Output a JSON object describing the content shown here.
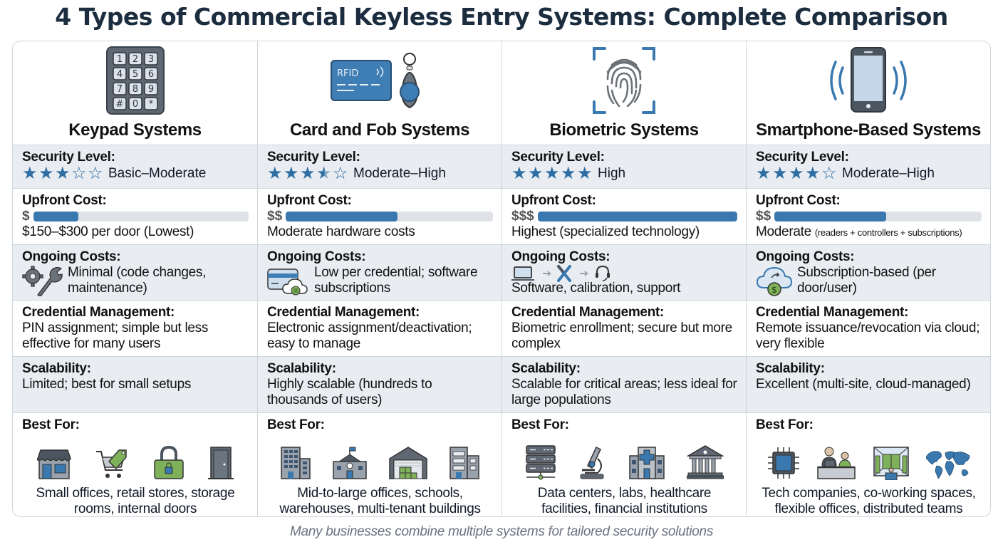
{
  "title": "4 Types of Commercial Keyless Entry Systems: Complete Comparison",
  "footer": "Many businesses combine multiple systems for tailored security solutions",
  "colors": {
    "accent": "#3a78b0",
    "title": "#1b2d3f",
    "shaded_row": "#e9edf2",
    "border": "#cfd5dc"
  },
  "row_labels": {
    "security": "Security Level:",
    "upfront": "Upfront Cost:",
    "ongoing": "Ongoing Costs:",
    "credential": "Credential Management:",
    "scalability": "Scalability:",
    "best_for": "Best For:"
  },
  "systems": [
    {
      "name": "Keypad Systems",
      "icon": "keypad-icon",
      "security": {
        "stars": 3,
        "label": "Basic–Moderate"
      },
      "upfront": {
        "dollars": "$",
        "bar_pct": 21,
        "text": "$150–$300 per door (Lowest)",
        "note": ""
      },
      "ongoing": {
        "icon": "gear-wrench-icon",
        "text": "Minimal (code changes, maintenance)"
      },
      "credential": "PIN assignment; simple but less effective for many users",
      "scalability": "Limited; best for small setups",
      "best_for": {
        "icons": [
          "storefront-icon",
          "shopping-cart-tag-icon",
          "padlock-icon",
          "door-icon"
        ],
        "text": "Small offices, retail stores, storage rooms, internal doors"
      }
    },
    {
      "name": "Card and Fob Systems",
      "icon": "rfid-card-fob-icon",
      "security": {
        "stars": 3.5,
        "label": "Moderate–High"
      },
      "upfront": {
        "dollars": "$$",
        "bar_pct": 54,
        "text": "Moderate hardware costs",
        "note": ""
      },
      "ongoing": {
        "icon": "card-cloud-icon",
        "text": "Low per credential; software subscriptions"
      },
      "credential": "Electronic assignment/deactivation; easy to manage",
      "scalability": "Highly scalable (hundreds to thousands of users)",
      "best_for": {
        "icons": [
          "office-building-icon",
          "school-icon",
          "warehouse-icon",
          "multi-tenant-building-icon"
        ],
        "text": "Mid-to-large offices, schools, warehouses, multi-tenant buildings"
      }
    },
    {
      "name": "Biometric Systems",
      "icon": "fingerprint-icon",
      "security": {
        "stars": 5,
        "label": "High"
      },
      "upfront": {
        "dollars": "$$$",
        "bar_pct": 100,
        "text": "Highest (specialized technology)",
        "note": ""
      },
      "ongoing": {
        "icon": "laptop-tools-headset-icon",
        "text": "Software, calibration, support"
      },
      "credential": "Biometric enrollment; secure but more complex",
      "scalability": "Scalable for critical areas; less ideal for large populations",
      "best_for": {
        "icons": [
          "server-rack-icon",
          "microscope-icon",
          "hospital-icon",
          "bank-icon"
        ],
        "text": "Data centers, labs, healthcare facilities, financial institutions"
      }
    },
    {
      "name": "Smartphone-Based Systems",
      "icon": "smartphone-signal-icon",
      "security": {
        "stars": 4,
        "label": "Moderate–High"
      },
      "upfront": {
        "dollars": "$$",
        "bar_pct": 54,
        "text": "Moderate",
        "note": "(readers + controllers + subscriptions)"
      },
      "ongoing": {
        "icon": "cloud-dollar-icon",
        "text": "Subscription-based (per door/user)"
      },
      "credential": "Remote issuance/revocation via cloud; very flexible",
      "scalability": "Excellent (multi-site, cloud-managed)",
      "best_for": {
        "icons": [
          "microchip-icon",
          "coworking-icon",
          "flexible-office-icon",
          "world-map-icon"
        ],
        "text": "Tech companies, co-working spaces, flexible offices, distributed teams"
      }
    }
  ]
}
